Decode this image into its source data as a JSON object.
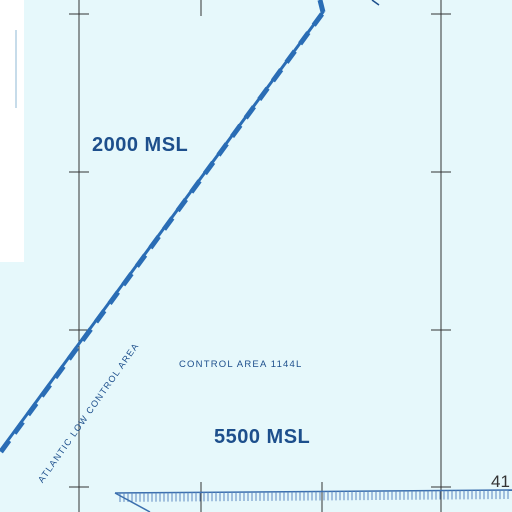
{
  "map": {
    "labels": {
      "altitude_upper": "2000 MSL",
      "altitude_lower": "5500 MSL",
      "control_area": "CONTROL AREA 1144L",
      "boundary_name": "ATLANTIC LOW CONTROL AREA",
      "grid_number": "41"
    },
    "colors": {
      "background": "#e6f8fb",
      "boundary": "#2a6db5",
      "text": "#1d4f8c",
      "grid": "#333333"
    }
  }
}
